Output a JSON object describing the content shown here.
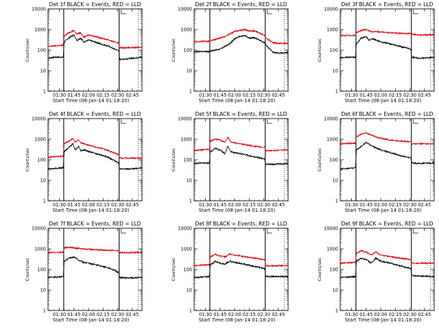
{
  "colors": {
    "events": "#000000",
    "lld": "#dd0000",
    "axis": "#000000",
    "background": "#ffffff"
  },
  "chart_data": [
    {
      "type": "line",
      "title": "Det 1f BLACK = Events, RED = LLD",
      "xlabel": "Start Time (08-Jan-14 01:18:20)",
      "ylabel": "Counts/sec",
      "y_scale": "log",
      "ylim": [
        1,
        10000
      ],
      "xlim": [
        "01:18:20",
        "02:55:00"
      ],
      "x_tick_labels": [
        "01:30",
        "01:45",
        "02:00",
        "02:15",
        "02:30",
        "02:45"
      ],
      "y_tick_labels": [
        "1",
        "10",
        "100",
        "1000",
        "10000"
      ],
      "vertical_markers": [
        "01:34:30",
        "02:31:30"
      ],
      "grid": false,
      "series": [
        {
          "name": "Events",
          "color": "#000000",
          "x": [
            "01:18",
            "01:25",
            "01:34",
            "01:35",
            "01:40",
            "01:45",
            "01:48",
            "01:52",
            "01:55",
            "02:00",
            "02:05",
            "02:10",
            "02:15",
            "02:20",
            "02:25",
            "02:31",
            "02:32",
            "02:40",
            "02:45",
            "02:55"
          ],
          "y": [
            40,
            45,
            45,
            250,
            400,
            550,
            300,
            380,
            250,
            300,
            260,
            220,
            180,
            160,
            120,
            95,
            35,
            38,
            40,
            45
          ]
        },
        {
          "name": "LLD",
          "color": "#dd0000",
          "x": [
            "01:18",
            "01:25",
            "01:34",
            "01:35",
            "01:40",
            "01:45",
            "01:48",
            "01:52",
            "01:55",
            "02:00",
            "02:05",
            "02:10",
            "02:15",
            "02:20",
            "02:25",
            "02:31",
            "02:32",
            "02:40",
            "02:45",
            "02:55"
          ],
          "y": [
            150,
            160,
            170,
            500,
            700,
            900,
            600,
            700,
            420,
            550,
            480,
            420,
            360,
            320,
            260,
            220,
            130,
            130,
            130,
            140
          ]
        }
      ]
    },
    {
      "type": "line",
      "title": "Det 2f BLACK = Events, RED = LLD",
      "xlabel": "Start Time (08-Jan-14 01:18:20)",
      "ylabel": "Counts/sec",
      "y_scale": "log",
      "ylim": [
        1,
        10000
      ],
      "xlim": [
        "01:18:20",
        "02:55:00"
      ],
      "x_tick_labels": [
        "01:30",
        "01:45",
        "02:00",
        "02:15",
        "02:30",
        "02:45"
      ],
      "y_tick_labels": [
        "1",
        "10",
        "100",
        "1000",
        "10000"
      ],
      "vertical_markers": [
        "01:34:30",
        "02:31:30"
      ],
      "grid": false,
      "series": [
        {
          "name": "Events",
          "color": "#000000",
          "x": [
            "01:18",
            "01:25",
            "01:34",
            "01:35",
            "01:40",
            "01:45",
            "01:50",
            "01:55",
            "02:00",
            "02:05",
            "02:10",
            "02:15",
            "02:20",
            "02:25",
            "02:31",
            "02:32",
            "02:40",
            "02:50",
            "02:55"
          ],
          "y": [
            80,
            85,
            85,
            90,
            100,
            110,
            150,
            200,
            350,
            450,
            500,
            380,
            400,
            320,
            220,
            180,
            75,
            70,
            75
          ]
        },
        {
          "name": "LLD",
          "color": "#dd0000",
          "x": [
            "01:18",
            "01:25",
            "01:34",
            "01:35",
            "01:40",
            "01:45",
            "01:50",
            "01:55",
            "02:00",
            "02:05",
            "02:10",
            "02:15",
            "02:20",
            "02:25",
            "02:31",
            "02:32",
            "02:40",
            "02:50",
            "02:55"
          ],
          "y": [
            250,
            260,
            270,
            280,
            330,
            380,
            450,
            600,
            800,
            900,
            1000,
            850,
            850,
            700,
            500,
            380,
            220,
            210,
            220
          ]
        }
      ]
    },
    {
      "type": "line",
      "title": "Det 3f BLACK = Events, RED = LLD",
      "xlabel": "Start Time (08-Jan-14 01:18:20)",
      "ylabel": "Counts/sec",
      "y_scale": "log",
      "ylim": [
        1,
        10000
      ],
      "xlim": [
        "01:18:20",
        "02:55:00"
      ],
      "x_tick_labels": [
        "01:30",
        "01:45",
        "02:00",
        "02:15",
        "02:30",
        "02:45"
      ],
      "y_tick_labels": [
        "1",
        "10",
        "100",
        "1000",
        "10000"
      ],
      "vertical_markers": [
        "01:34:30",
        "02:31:30"
      ],
      "grid": false,
      "series": [
        {
          "name": "Events",
          "color": "#000000",
          "x": [
            "01:18",
            "01:25",
            "01:34",
            "01:35",
            "01:40",
            "01:45",
            "01:48",
            "01:52",
            "02:00",
            "02:10",
            "02:20",
            "02:31",
            "02:32",
            "02:40",
            "02:55"
          ],
          "y": [
            40,
            45,
            45,
            200,
            380,
            450,
            300,
            350,
            250,
            200,
            150,
            110,
            45,
            40,
            45
          ]
        },
        {
          "name": "LLD",
          "color": "#dd0000",
          "x": [
            "01:18",
            "01:25",
            "01:34",
            "01:35",
            "01:40",
            "01:45",
            "01:50",
            "02:00",
            "02:10",
            "02:20",
            "02:31",
            "02:32",
            "02:40",
            "02:55"
          ],
          "y": [
            500,
            510,
            520,
            700,
            900,
            1000,
            800,
            750,
            700,
            650,
            620,
            600,
            550,
            550
          ]
        }
      ]
    },
    {
      "type": "line",
      "title": "Det 4f BLACK = Events, RED = LLD",
      "xlabel": "Start Time (08-Jan-14 01:18:20)",
      "ylabel": "Counts/sec",
      "y_scale": "log",
      "ylim": [
        1,
        10000
      ],
      "xlim": [
        "01:18:20",
        "02:55:00"
      ],
      "x_tick_labels": [
        "01:30",
        "01:45",
        "02:00",
        "02:15",
        "02:30",
        "02:45"
      ],
      "y_tick_labels": [
        "1",
        "10",
        "100",
        "1000",
        "10000"
      ],
      "vertical_markers": [
        "01:34:30",
        "02:31:30"
      ],
      "grid": false,
      "series": [
        {
          "name": "Events",
          "color": "#000000",
          "x": [
            "01:18",
            "01:25",
            "01:34",
            "01:35",
            "01:40",
            "01:44",
            "01:46",
            "01:50",
            "01:52",
            "01:56",
            "02:00",
            "02:05",
            "02:10",
            "02:15",
            "02:20",
            "02:25",
            "02:31",
            "02:32",
            "02:40",
            "02:55"
          ],
          "y": [
            35,
            38,
            40,
            250,
            400,
            600,
            300,
            450,
            280,
            300,
            250,
            220,
            180,
            160,
            130,
            100,
            70,
            35,
            35,
            40
          ]
        },
        {
          "name": "LLD",
          "color": "#dd0000",
          "x": [
            "01:18",
            "01:25",
            "01:34",
            "01:35",
            "01:40",
            "01:44",
            "01:46",
            "01:50",
            "01:52",
            "01:56",
            "02:00",
            "02:05",
            "02:10",
            "02:15",
            "02:20",
            "02:25",
            "02:31",
            "02:32",
            "02:40",
            "02:55"
          ],
          "y": [
            130,
            140,
            150,
            600,
            800,
            1100,
            700,
            900,
            650,
            600,
            500,
            450,
            380,
            340,
            280,
            230,
            180,
            120,
            120,
            120
          ]
        }
      ]
    },
    {
      "type": "line",
      "title": "Det 5f BLACK = Events, RED = LLD",
      "xlabel": "Start Time (08-Jan-14 01:18:20)",
      "ylabel": "Counts/sec",
      "y_scale": "log",
      "ylim": [
        1,
        10000
      ],
      "xlim": [
        "01:18:20",
        "02:55:00"
      ],
      "x_tick_labels": [
        "01:30",
        "01:45",
        "02:00",
        "02:15",
        "02:30",
        "02:45"
      ],
      "y_tick_labels": [
        "1",
        "10",
        "100",
        "1000",
        "10000"
      ],
      "vertical_markers": [
        "01:34:30",
        "02:31:30"
      ],
      "grid": false,
      "series": [
        {
          "name": "Events",
          "color": "#000000",
          "x": [
            "01:18",
            "01:25",
            "01:34",
            "01:35",
            "01:40",
            "01:45",
            "01:50",
            "01:53",
            "01:56",
            "02:00",
            "02:10",
            "02:20",
            "02:31",
            "02:32",
            "02:40",
            "02:55"
          ],
          "y": [
            65,
            70,
            70,
            250,
            350,
            300,
            200,
            450,
            250,
            220,
            180,
            140,
            110,
            60,
            60,
            65
          ]
        },
        {
          "name": "LLD",
          "color": "#dd0000",
          "x": [
            "01:18",
            "01:25",
            "01:34",
            "01:35",
            "01:40",
            "01:45",
            "01:50",
            "01:53",
            "01:56",
            "02:00",
            "02:10",
            "02:20",
            "02:31",
            "02:32",
            "02:40",
            "02:55"
          ],
          "y": [
            280,
            300,
            320,
            800,
            1000,
            900,
            700,
            1200,
            750,
            650,
            550,
            450,
            400,
            280,
            280,
            300
          ]
        }
      ]
    },
    {
      "type": "line",
      "title": "Det 6f BLACK = Events, RED = LLD",
      "xlabel": "Start Time (08-Jan-14 01:18:20)",
      "ylabel": "Counts/sec",
      "y_scale": "log",
      "ylim": [
        1,
        10000
      ],
      "xlim": [
        "01:18:20",
        "02:55:00"
      ],
      "x_tick_labels": [
        "01:30",
        "01:45",
        "02:00",
        "02:15",
        "02:30",
        "02:45"
      ],
      "y_tick_labels": [
        "1",
        "10",
        "100",
        "1000",
        "10000"
      ],
      "vertical_markers": [
        "01:34:30",
        "02:31:30"
      ],
      "grid": false,
      "series": [
        {
          "name": "Events",
          "color": "#000000",
          "x": [
            "01:18",
            "01:25",
            "01:34",
            "01:35",
            "01:40",
            "01:45",
            "01:50",
            "01:55",
            "02:00",
            "02:10",
            "02:20",
            "02:31",
            "02:32",
            "02:40",
            "02:55"
          ],
          "y": [
            35,
            38,
            40,
            300,
            450,
            700,
            500,
            380,
            300,
            220,
            160,
            120,
            70,
            65,
            70
          ]
        },
        {
          "name": "LLD",
          "color": "#dd0000",
          "x": [
            "01:18",
            "01:25",
            "01:34",
            "01:35",
            "01:40",
            "01:45",
            "01:50",
            "01:55",
            "02:00",
            "02:10",
            "02:20",
            "02:31",
            "02:32",
            "02:40",
            "02:55"
          ],
          "y": [
            600,
            620,
            650,
            1300,
            1700,
            2000,
            1600,
            1300,
            1100,
            900,
            800,
            750,
            600,
            600,
            600
          ]
        }
      ]
    },
    {
      "type": "line",
      "title": "Det 7f BLACK = Events, RED = LLD",
      "xlabel": "Start Time (08-Jan-14 01:18:20)",
      "ylabel": "Counts/sec",
      "y_scale": "log",
      "ylim": [
        1,
        10000
      ],
      "xlim": [
        "01:18:20",
        "02:55:00"
      ],
      "x_tick_labels": [
        "01:30",
        "01:45",
        "02:00",
        "02:15",
        "02:30",
        "02:45"
      ],
      "y_tick_labels": [
        "1",
        "10",
        "100",
        "1000",
        "10000"
      ],
      "vertical_markers": [
        "01:34:30",
        "02:31:30"
      ],
      "grid": false,
      "series": [
        {
          "name": "Events",
          "color": "#000000",
          "x": [
            "01:18",
            "01:25",
            "01:34",
            "01:35",
            "01:40",
            "01:45",
            "01:50",
            "01:55",
            "02:00",
            "02:10",
            "02:20",
            "02:25",
            "02:31",
            "02:32",
            "02:40",
            "02:55"
          ],
          "y": [
            40,
            42,
            45,
            250,
            350,
            400,
            280,
            220,
            200,
            160,
            120,
            100,
            70,
            40,
            38,
            40
          ]
        },
        {
          "name": "LLD",
          "color": "#dd0000",
          "x": [
            "01:18",
            "01:25",
            "01:34",
            "01:35",
            "01:40",
            "01:45",
            "01:50",
            "01:55",
            "02:00",
            "02:10",
            "02:20",
            "02:31",
            "02:32",
            "02:40",
            "02:55"
          ],
          "y": [
            650,
            660,
            680,
            1100,
            1200,
            1100,
            1050,
            1000,
            950,
            900,
            850,
            800,
            650,
            650,
            680
          ]
        }
      ]
    },
    {
      "type": "line",
      "title": "Det 8f BLACK = Events, RED = LLD",
      "xlabel": "Start Time (08-Jan-14 01:18:20)",
      "ylabel": "Counts/sec",
      "y_scale": "log",
      "ylim": [
        1,
        10000
      ],
      "xlim": [
        "01:18:20",
        "02:55:00"
      ],
      "x_tick_labels": [
        "01:30",
        "01:45",
        "02:00",
        "02:15",
        "02:30",
        "02:45"
      ],
      "y_tick_labels": [
        "1",
        "10",
        "100",
        "1000",
        "10000"
      ],
      "vertical_markers": [
        "01:34:30",
        "02:31:30"
      ],
      "grid": false,
      "series": [
        {
          "name": "Events",
          "color": "#000000",
          "x": [
            "01:18",
            "01:25",
            "01:34",
            "01:35",
            "01:40",
            "01:45",
            "01:50",
            "01:55",
            "02:00",
            "02:10",
            "02:20",
            "02:31",
            "02:32",
            "02:40",
            "02:55"
          ],
          "y": [
            40,
            42,
            45,
            160,
            250,
            200,
            180,
            250,
            220,
            180,
            140,
            110,
            45,
            45,
            45
          ]
        },
        {
          "name": "LLD",
          "color": "#dd0000",
          "x": [
            "01:18",
            "01:25",
            "01:34",
            "01:35",
            "01:40",
            "01:45",
            "01:50",
            "01:55",
            "02:00",
            "02:10",
            "02:20",
            "02:31",
            "02:32",
            "02:40",
            "02:55"
          ],
          "y": [
            150,
            160,
            170,
            400,
            550,
            450,
            400,
            550,
            500,
            420,
            350,
            300,
            150,
            150,
            150
          ]
        }
      ]
    },
    {
      "type": "line",
      "title": "Det 9f BLACK = Events, RED = LLD",
      "xlabel": "Start Time (08-Jan-14 01:18:20)",
      "ylabel": "Counts/sec",
      "y_scale": "log",
      "ylim": [
        1,
        10000
      ],
      "xlim": [
        "01:18:20",
        "02:55:00"
      ],
      "x_tick_labels": [
        "01:30",
        "01:45",
        "02:00",
        "02:15",
        "02:30",
        "02:45"
      ],
      "y_tick_labels": [
        "1",
        "10",
        "100",
        "1000",
        "10000"
      ],
      "vertical_markers": [
        "01:34:30",
        "02:31:30"
      ],
      "grid": false,
      "series": [
        {
          "name": "Events",
          "color": "#000000",
          "x": [
            "01:18",
            "01:25",
            "01:34",
            "01:35",
            "01:40",
            "01:45",
            "01:50",
            "01:55",
            "02:00",
            "02:10",
            "02:20",
            "02:31",
            "02:32",
            "02:40",
            "02:55"
          ],
          "y": [
            40,
            42,
            45,
            250,
            350,
            300,
            200,
            350,
            250,
            200,
            150,
            110,
            50,
            48,
            45
          ]
        },
        {
          "name": "LLD",
          "color": "#dd0000",
          "x": [
            "01:18",
            "01:25",
            "01:34",
            "01:35",
            "01:40",
            "01:45",
            "01:50",
            "01:55",
            "02:00",
            "02:10",
            "02:20",
            "02:31",
            "02:32",
            "02:40",
            "02:55"
          ],
          "y": [
            200,
            210,
            220,
            600,
            800,
            700,
            500,
            700,
            500,
            420,
            350,
            300,
            200,
            200,
            200
          ]
        }
      ]
    }
  ]
}
